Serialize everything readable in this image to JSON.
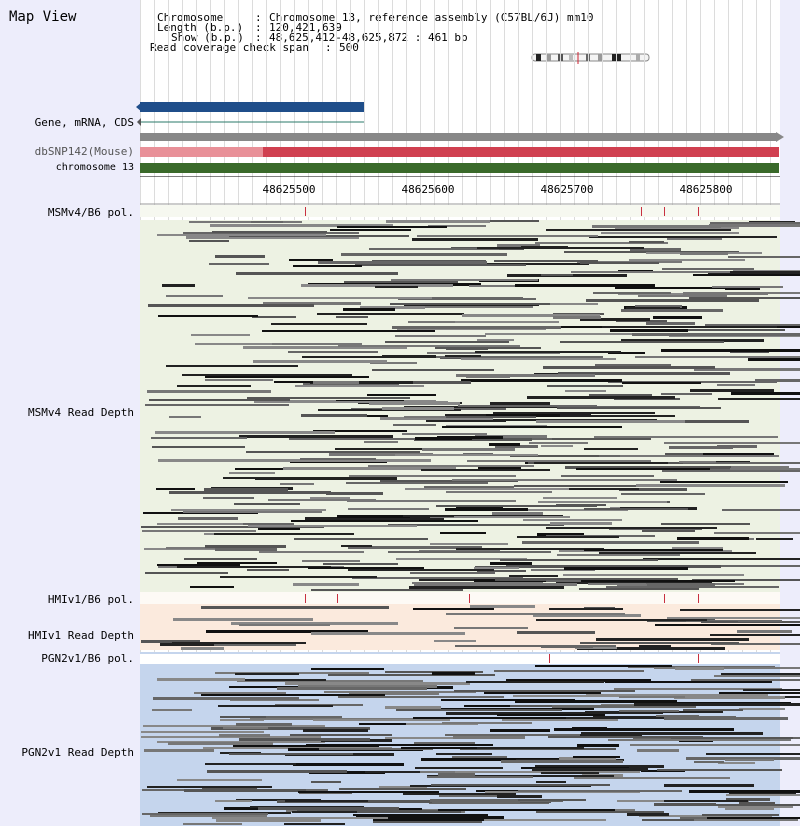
{
  "app": {
    "title": "Map View"
  },
  "info": {
    "chromosome_key": "Chromosome",
    "chromosome_value": "Chromosome 13, reference assembly (C57BL/6J) mm10",
    "length_key": "Length (b.p.)",
    "length_value": "120,421,639",
    "show_key": "Show (b.p.)",
    "show_value": "48,625,412-48,625,872 : 461 bp",
    "coverage_key": "Read coverage check span",
    "coverage_value": "500",
    "sep": ":"
  },
  "tracks": {
    "gene": "Gene, mRNA, CDS",
    "dbsnp": "dbSNP142(Mouse)",
    "chromosome": "chromosome 13",
    "msm_pol": "MSMv4/B6 pol.",
    "msm_depth": "MSMv4 Read Depth",
    "hmi_pol": "HMIv1/B6 pol.",
    "hmi_depth": "HMIv1 Read Depth",
    "pgn_pol": "PGN2v1/B6 pol.",
    "pgn_depth": "PGN2v1 Read Depth"
  },
  "ruler": {
    "ticks": [
      "48625500",
      "48625600",
      "48625700",
      "48625800"
    ]
  },
  "colors": {
    "panel_bg": "#ededfb",
    "gene_bar": "#1f4e8a",
    "dbsnp_light": "#e89098",
    "dbsnp_dark": "#d04050",
    "chromosome_bar": "#3a6a2a",
    "msm_bg": "#edf2e3",
    "hmi_bg": "#fbeadd",
    "pgn_bg": "#c5d5ed",
    "variant": "#c83040"
  },
  "icons": {
    "chromosome_ideogram": "chromosome-ideogram-icon",
    "left_arrow": "arrow-left-icon",
    "right_arrow": "arrow-right-icon"
  }
}
